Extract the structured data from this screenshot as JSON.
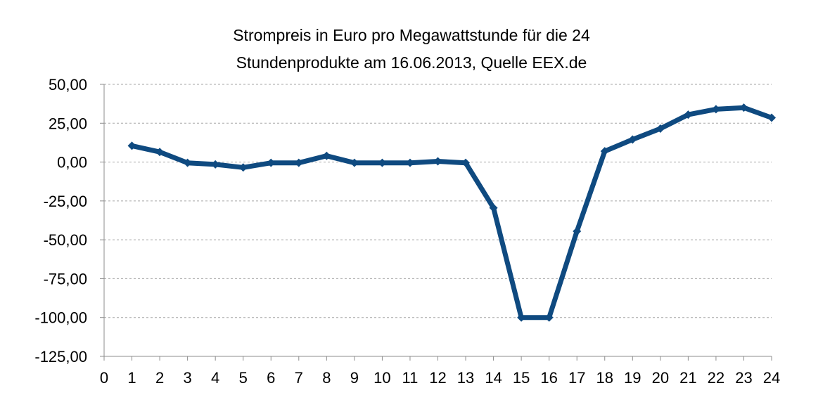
{
  "chart_data": {
    "type": "line",
    "title": [
      "Strompreis  in Euro pro Megawattstunde  für die 24",
      "Stundenprodukte  am 16.06.2013,  Quelle EEX.de"
    ],
    "xlabel": "",
    "ylabel": "",
    "xlim": [
      0,
      24
    ],
    "ylim": [
      -125,
      50
    ],
    "x_ticks": [
      0,
      1,
      2,
      3,
      4,
      5,
      6,
      7,
      8,
      9,
      10,
      11,
      12,
      13,
      14,
      15,
      16,
      17,
      18,
      19,
      20,
      21,
      22,
      23,
      24
    ],
    "x_tick_labels": [
      "0",
      "1",
      "2",
      "3",
      "4",
      "5",
      "6",
      "7",
      "8",
      "9",
      "10",
      "11",
      "12",
      "13",
      "14",
      "15",
      "16",
      "17",
      "18",
      "19",
      "20",
      "21",
      "22",
      "23",
      "24"
    ],
    "y_ticks": [
      50,
      25,
      0,
      -25,
      -50,
      -75,
      -100,
      -125
    ],
    "y_tick_labels": [
      "50,00",
      "25,00",
      "0,00",
      "-25,00",
      "-50,00",
      "-75,00",
      "-100,00",
      "-125,00"
    ],
    "grid": "horizontal",
    "legend": "none",
    "colors": {
      "series": "#0f4a80",
      "grid": "#a6a6a6",
      "axis": "#8c8c8c"
    },
    "series": [
      {
        "x": [
          1,
          2,
          3,
          4,
          5,
          6,
          7,
          8,
          9,
          10,
          11,
          12,
          13,
          14,
          15,
          16,
          17,
          18,
          19,
          20,
          21,
          22,
          23,
          24
        ],
        "values": [
          10.5,
          6.5,
          -0.5,
          -1.5,
          -3.5,
          -0.5,
          -0.5,
          4.0,
          -0.5,
          -0.5,
          -0.5,
          0.5,
          -0.5,
          -29.5,
          -100.0,
          -100.0,
          -44.5,
          7.0,
          14.5,
          21.5,
          30.5,
          34.0,
          35.0,
          28.5
        ]
      }
    ]
  }
}
